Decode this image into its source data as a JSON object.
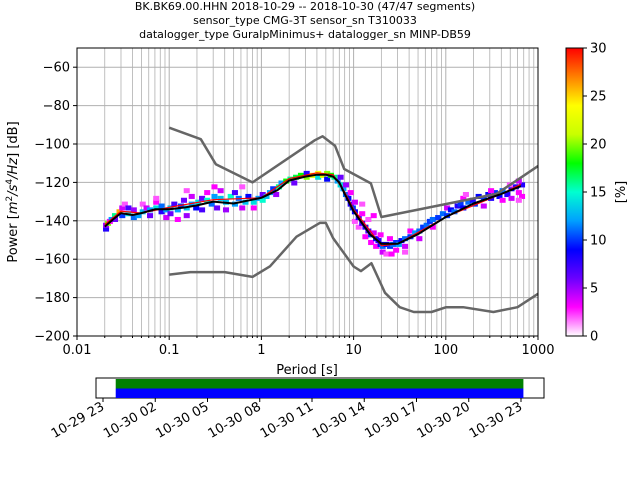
{
  "chart_data": [
    {
      "type": "heatmap",
      "title_lines": [
        "BK.BK69.00.HHN   2018-10-29 -- 2018-10-30  (47/47 segments)",
        "sensor_type CMG-3T sensor_sn T310033",
        "datalogger_type GuralpMinimus+ datalogger_sn MINP-DB59"
      ],
      "xlabel": "Period [s]",
      "ylabel_parts": [
        "Power [",
        "m",
        "2",
        "/s",
        "4",
        "/Hz",
        "] [dB]"
      ],
      "x_scale": "log",
      "xlim": [
        0.01,
        1000
      ],
      "ylim": [
        -200,
        -50
      ],
      "x_ticks": [
        {
          "value": 0.01,
          "label": "0.01"
        },
        {
          "value": 0.1,
          "label": "0.1"
        },
        {
          "value": 1,
          "label": "1"
        },
        {
          "value": 10,
          "label": "10"
        },
        {
          "value": 100,
          "label": "100"
        },
        {
          "value": 1000,
          "label": "1000"
        }
      ],
      "y_ticks": [
        {
          "value": -60,
          "label": "−60"
        },
        {
          "value": -80,
          "label": "−80"
        },
        {
          "value": -100,
          "label": "−100"
        },
        {
          "value": -120,
          "label": "−120"
        },
        {
          "value": -140,
          "label": "−140"
        },
        {
          "value": -160,
          "label": "−160"
        },
        {
          "value": -180,
          "label": "−180"
        },
        {
          "value": -200,
          "label": "−200"
        }
      ],
      "grid": true,
      "colorbar": {
        "label": "[%]",
        "range": [
          0,
          30
        ],
        "ticks": [
          {
            "value": 0,
            "label": "0"
          },
          {
            "value": 5,
            "label": "5"
          },
          {
            "value": 10,
            "label": "10"
          },
          {
            "value": 15,
            "label": "15"
          },
          {
            "value": 20,
            "label": "20"
          },
          {
            "value": 25,
            "label": "25"
          },
          {
            "value": 30,
            "label": "30"
          }
        ],
        "colors": [
          "#ffffff",
          "#ff00ff",
          "#6a00ff",
          "#0000ff",
          "#00a0ff",
          "#00ffd0",
          "#00ff00",
          "#c8ff00",
          "#ffff00",
          "#ff8000",
          "#ff0000"
        ]
      },
      "noise_model_high": {
        "color": "#666666",
        "points": [
          [
            0.1,
            -91.5
          ],
          [
            0.22,
            -97.5
          ],
          [
            0.32,
            -110.5
          ],
          [
            0.8,
            -120
          ],
          [
            3.8,
            -98
          ],
          [
            4.6,
            -96
          ],
          [
            6.3,
            -101
          ],
          [
            7.9,
            -113
          ],
          [
            15.4,
            -120.5
          ],
          [
            20,
            -138
          ],
          [
            354.8,
            -126
          ],
          [
            1000,
            -111.5
          ]
        ]
      },
      "noise_model_low": {
        "color": "#666666",
        "points": [
          [
            0.1,
            -168
          ],
          [
            0.17,
            -166.7
          ],
          [
            0.4,
            -166.7
          ],
          [
            0.8,
            -169.2
          ],
          [
            1.24,
            -163.7
          ],
          [
            2.4,
            -148.3
          ],
          [
            4.3,
            -141.1
          ],
          [
            5.0,
            -141.1
          ],
          [
            6.0,
            -149.0
          ],
          [
            10.0,
            -163.8
          ],
          [
            12.0,
            -166.2
          ],
          [
            15.6,
            -162.1
          ],
          [
            21.9,
            -177.5
          ],
          [
            31.6,
            -185.0
          ],
          [
            45.0,
            -187.5
          ],
          [
            70.0,
            -187.5
          ],
          [
            101.0,
            -185.0
          ],
          [
            154.0,
            -185.0
          ],
          [
            328.0,
            -187.5
          ],
          [
            600.0,
            -185.0
          ],
          [
            1000.0,
            -178.0
          ]
        ]
      },
      "mean_curve": {
        "color": "#000000",
        "points": [
          [
            0.02,
            -143
          ],
          [
            0.025,
            -139
          ],
          [
            0.03,
            -136
          ],
          [
            0.04,
            -137
          ],
          [
            0.05,
            -136
          ],
          [
            0.07,
            -134
          ],
          [
            0.1,
            -134
          ],
          [
            0.15,
            -133
          ],
          [
            0.2,
            -132
          ],
          [
            0.3,
            -130
          ],
          [
            0.5,
            -131
          ],
          [
            1,
            -128
          ],
          [
            1.5,
            -124
          ],
          [
            2,
            -119
          ],
          [
            3,
            -117
          ],
          [
            4,
            -116
          ],
          [
            5,
            -116
          ],
          [
            6,
            -117
          ],
          [
            7,
            -120
          ],
          [
            8,
            -126
          ],
          [
            10,
            -135
          ],
          [
            15,
            -147
          ],
          [
            20,
            -152
          ],
          [
            30,
            -152
          ],
          [
            50,
            -147
          ],
          [
            100,
            -138
          ],
          [
            200,
            -131
          ],
          [
            400,
            -126
          ],
          [
            650,
            -122
          ]
        ]
      },
      "mode_curve": {
        "color": "#ff0000",
        "points": [
          [
            0.02,
            -142
          ],
          [
            0.03,
            -135
          ],
          [
            0.05,
            -136
          ],
          [
            0.1,
            -133
          ],
          [
            0.3,
            -129
          ],
          [
            1,
            -128
          ],
          [
            2,
            -118
          ],
          [
            4,
            -115
          ],
          [
            6,
            -116
          ],
          [
            8,
            -125
          ],
          [
            10,
            -134
          ],
          [
            20,
            -153
          ],
          [
            30,
            -152
          ],
          [
            100,
            -138
          ],
          [
            400,
            -126
          ],
          [
            650,
            -121
          ]
        ]
      },
      "histogram_cells": [
        [
          0.02,
          -144,
          8
        ],
        [
          0.02,
          -142,
          5
        ],
        [
          0.021,
          -141,
          20
        ],
        [
          0.022,
          -140,
          3
        ],
        [
          0.023,
          -139,
          12
        ],
        [
          0.025,
          -137,
          16
        ],
        [
          0.025,
          -139,
          6
        ],
        [
          0.028,
          -135,
          26
        ],
        [
          0.03,
          -133,
          4
        ],
        [
          0.03,
          -137,
          10
        ],
        [
          0.032,
          -131,
          2
        ],
        [
          0.035,
          -136,
          14
        ],
        [
          0.035,
          -133,
          7
        ],
        [
          0.04,
          -138,
          11
        ],
        [
          0.04,
          -134,
          5
        ],
        [
          0.045,
          -137,
          12
        ],
        [
          0.05,
          -135,
          13
        ],
        [
          0.05,
          -131,
          2
        ],
        [
          0.055,
          -133,
          4
        ],
        [
          0.06,
          -134,
          12
        ],
        [
          0.06,
          -137,
          6
        ],
        [
          0.07,
          -133,
          14
        ],
        [
          0.07,
          -130,
          3
        ],
        [
          0.08,
          -135,
          8
        ],
        [
          0.08,
          -132,
          11
        ],
        [
          0.09,
          -134,
          12
        ],
        [
          0.09,
          -138,
          4
        ],
        [
          0.1,
          -133,
          13
        ],
        [
          0.1,
          -136,
          6
        ],
        [
          0.11,
          -131,
          7
        ],
        [
          0.12,
          -134,
          12
        ],
        [
          0.12,
          -139,
          3
        ],
        [
          0.13,
          -132,
          10
        ],
        [
          0.14,
          -129,
          6
        ],
        [
          0.15,
          -133,
          13
        ],
        [
          0.15,
          -137,
          5
        ],
        [
          0.17,
          -131,
          12
        ],
        [
          0.17,
          -127,
          4
        ],
        [
          0.19,
          -133,
          9
        ],
        [
          0.2,
          -130,
          14
        ],
        [
          0.22,
          -128,
          6
        ],
        [
          0.22,
          -134,
          7
        ],
        [
          0.25,
          -129,
          15
        ],
        [
          0.25,
          -125,
          3
        ],
        [
          0.28,
          -131,
          11
        ],
        [
          0.3,
          -127,
          12
        ],
        [
          0.32,
          -133,
          6
        ],
        [
          0.35,
          -128,
          13
        ],
        [
          0.35,
          -124,
          4
        ],
        [
          0.4,
          -130,
          13
        ],
        [
          0.4,
          -134,
          5
        ],
        [
          0.45,
          -127,
          15
        ],
        [
          0.5,
          -131,
          12
        ],
        [
          0.5,
          -125,
          7
        ],
        [
          0.55,
          -128,
          11
        ],
        [
          0.6,
          -133,
          4
        ],
        [
          0.65,
          -130,
          13
        ],
        [
          0.7,
          -127,
          9
        ],
        [
          0.8,
          -130,
          14
        ],
        [
          0.8,
          -133,
          3
        ],
        [
          0.9,
          -128,
          12
        ],
        [
          1,
          -129,
          15
        ],
        [
          1,
          -126,
          6
        ],
        [
          1.1,
          -127,
          13
        ],
        [
          1.2,
          -125,
          12
        ],
        [
          1.3,
          -123,
          10
        ],
        [
          1.4,
          -126,
          5
        ],
        [
          1.5,
          -122,
          16
        ],
        [
          1.6,
          -120,
          12
        ],
        [
          1.8,
          -119,
          18
        ],
        [
          2,
          -118,
          16
        ],
        [
          2.2,
          -120,
          6
        ],
        [
          2.3,
          -117,
          17
        ],
        [
          2.6,
          -116,
          18
        ],
        [
          3,
          -117,
          20
        ],
        [
          3,
          -115,
          8
        ],
        [
          3.5,
          -116,
          22
        ],
        [
          4,
          -115,
          24
        ],
        [
          4,
          -117,
          14
        ],
        [
          4.5,
          -116,
          22
        ],
        [
          5,
          -115,
          20
        ],
        [
          5,
          -118,
          9
        ],
        [
          5.5,
          -116,
          18
        ],
        [
          6,
          -117,
          16
        ],
        [
          6.5,
          -119,
          12
        ],
        [
          7,
          -121,
          14
        ],
        [
          7,
          -117,
          6
        ],
        [
          7.5,
          -123,
          12
        ],
        [
          8,
          -126,
          11
        ],
        [
          8,
          -121,
          5
        ],
        [
          8.5,
          -128,
          9
        ],
        [
          9,
          -131,
          8
        ],
        [
          9,
          -125,
          3
        ],
        [
          9.5,
          -133,
          10
        ],
        [
          10,
          -135,
          9
        ],
        [
          10,
          -130,
          4
        ],
        [
          10,
          -140,
          2
        ],
        [
          11,
          -138,
          8
        ],
        [
          11,
          -143,
          2
        ],
        [
          12,
          -141,
          7
        ],
        [
          12,
          -136,
          3
        ],
        [
          13,
          -143,
          8
        ],
        [
          13,
          -148,
          3
        ],
        [
          14,
          -145,
          7
        ],
        [
          14,
          -139,
          2
        ],
        [
          15,
          -147,
          10
        ],
        [
          15,
          -151,
          3
        ],
        [
          16,
          -146,
          4
        ],
        [
          17,
          -149,
          9
        ],
        [
          17,
          -153,
          3
        ],
        [
          18,
          -150,
          8
        ],
        [
          19,
          -152,
          9
        ],
        [
          19,
          -147,
          3
        ],
        [
          20,
          -153,
          11
        ],
        [
          20,
          -156,
          4
        ],
        [
          22,
          -152,
          9
        ],
        [
          22,
          -157,
          2
        ],
        [
          24,
          -153,
          10
        ],
        [
          24,
          -149,
          3
        ],
        [
          26,
          -152,
          11
        ],
        [
          28,
          -151,
          10
        ],
        [
          28,
          -155,
          3
        ],
        [
          30,
          -152,
          12
        ],
        [
          32,
          -150,
          9
        ],
        [
          35,
          -149,
          11
        ],
        [
          35,
          -153,
          4
        ],
        [
          40,
          -148,
          10
        ],
        [
          40,
          -145,
          3
        ],
        [
          45,
          -146,
          12
        ],
        [
          50,
          -145,
          11
        ],
        [
          50,
          -149,
          4
        ],
        [
          55,
          -143,
          10
        ],
        [
          60,
          -142,
          11
        ],
        [
          65,
          -140,
          10
        ],
        [
          70,
          -139,
          11
        ],
        [
          70,
          -143,
          3
        ],
        [
          80,
          -138,
          10
        ],
        [
          90,
          -136,
          11
        ],
        [
          100,
          -137,
          10
        ],
        [
          100,
          -133,
          4
        ],
        [
          110,
          -134,
          9
        ],
        [
          120,
          -135,
          11
        ],
        [
          130,
          -132,
          8
        ],
        [
          140,
          -131,
          10
        ],
        [
          150,
          -133,
          9
        ],
        [
          150,
          -128,
          3
        ],
        [
          170,
          -130,
          11
        ],
        [
          190,
          -129,
          8
        ],
        [
          200,
          -131,
          10
        ],
        [
          220,
          -127,
          9
        ],
        [
          250,
          -128,
          10
        ],
        [
          250,
          -132,
          4
        ],
        [
          280,
          -126,
          9
        ],
        [
          300,
          -128,
          8
        ],
        [
          330,
          -125,
          10
        ],
        [
          370,
          -127,
          9
        ],
        [
          400,
          -124,
          11
        ],
        [
          400,
          -129,
          3
        ],
        [
          450,
          -126,
          8
        ],
        [
          500,
          -123,
          9
        ],
        [
          500,
          -128,
          4
        ],
        [
          560,
          -122,
          8
        ],
        [
          600,
          -125,
          3
        ],
        [
          650,
          -121,
          8
        ],
        [
          650,
          -127,
          3
        ],
        [
          0.07,
          -128,
          2
        ],
        [
          0.15,
          -124,
          2
        ],
        [
          0.3,
          -122,
          3
        ],
        [
          0.6,
          -122,
          2
        ],
        [
          12,
          -131,
          2
        ],
        [
          16,
          -137,
          3
        ],
        [
          25,
          -157,
          3
        ],
        [
          35,
          -156,
          2
        ],
        [
          160,
          -126,
          2
        ],
        [
          300,
          -124,
          3
        ],
        [
          600,
          -119,
          4
        ],
        [
          600,
          -129,
          2
        ],
        [
          480,
          -121,
          2
        ]
      ]
    },
    {
      "type": "timeline",
      "x_ticks": [
        {
          "label": "10-29 23"
        },
        {
          "label": "10-30 02"
        },
        {
          "label": "10-30 05"
        },
        {
          "label": "10-30 08"
        },
        {
          "label": "10-30 11"
        },
        {
          "label": "10-30 14"
        },
        {
          "label": "10-30 17"
        },
        {
          "label": "10-30 20"
        },
        {
          "label": "10-30 23"
        }
      ],
      "bars": [
        {
          "color": "#008000",
          "start_frac": 0.044,
          "end_frac": 0.954
        },
        {
          "color": "#0000ff",
          "start_frac": 0.044,
          "end_frac": 0.954
        }
      ]
    }
  ]
}
